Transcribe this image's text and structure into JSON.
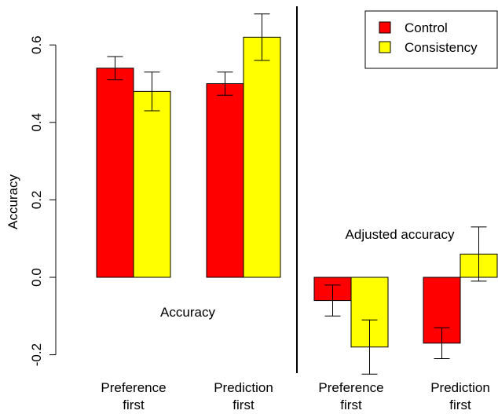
{
  "chart_data": {
    "type": "bar",
    "ylabel": "Accuracy",
    "ylim": [
      -0.25,
      0.7
    ],
    "yticks": [
      -0.2,
      0.0,
      0.2,
      0.4,
      0.6
    ],
    "ytick_labels": [
      "-0.2",
      "0.0",
      "0.2",
      "0.4",
      "0.6"
    ],
    "grid": false,
    "legend": {
      "placement": "top-right",
      "entries": [
        "Control",
        "Consistency"
      ]
    },
    "colors": {
      "Control": "#ff0000",
      "Consistency": "#ffff00"
    },
    "panels": [
      {
        "annotation": "Accuracy",
        "categories": [
          "Preference\nfirst",
          "Prediction\nfirst"
        ],
        "series": [
          {
            "name": "Control",
            "values": [
              0.54,
              0.5
            ],
            "err_low": [
              0.51,
              0.47
            ],
            "err_high": [
              0.57,
              0.53
            ]
          },
          {
            "name": "Consistency",
            "values": [
              0.48,
              0.62
            ],
            "err_low": [
              0.43,
              0.56
            ],
            "err_high": [
              0.53,
              0.68
            ]
          }
        ]
      },
      {
        "annotation": "Adjusted accuracy",
        "categories": [
          "Preference\nfirst",
          "Prediction\nfirst"
        ],
        "series": [
          {
            "name": "Control",
            "values": [
              -0.06,
              -0.17
            ],
            "err_low": [
              -0.1,
              -0.21
            ],
            "err_high": [
              -0.02,
              -0.13
            ]
          },
          {
            "name": "Consistency",
            "values": [
              -0.18,
              0.06
            ],
            "err_low": [
              -0.25,
              -0.01
            ],
            "err_high": [
              -0.11,
              0.13
            ]
          }
        ]
      }
    ]
  }
}
